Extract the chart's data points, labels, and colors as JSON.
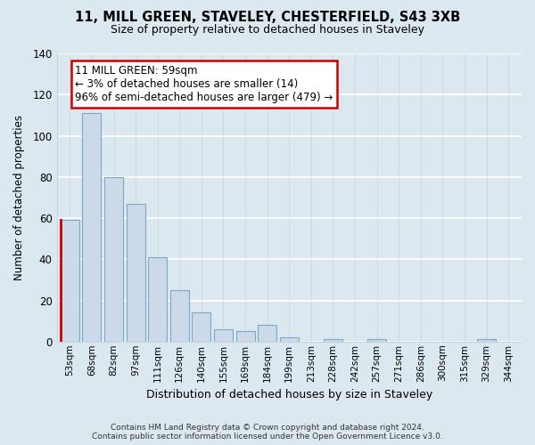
{
  "title": "11, MILL GREEN, STAVELEY, CHESTERFIELD, S43 3XB",
  "subtitle": "Size of property relative to detached houses in Staveley",
  "xlabel": "Distribution of detached houses by size in Staveley",
  "ylabel": "Number of detached properties",
  "categories": [
    "53sqm",
    "68sqm",
    "82sqm",
    "97sqm",
    "111sqm",
    "126sqm",
    "140sqm",
    "155sqm",
    "169sqm",
    "184sqm",
    "199sqm",
    "213sqm",
    "228sqm",
    "242sqm",
    "257sqm",
    "271sqm",
    "286sqm",
    "300sqm",
    "315sqm",
    "329sqm",
    "344sqm"
  ],
  "values": [
    59,
    111,
    80,
    67,
    41,
    25,
    14,
    6,
    5,
    8,
    2,
    0,
    1,
    0,
    1,
    0,
    0,
    0,
    0,
    1,
    0
  ],
  "bar_color": "#ccd9e8",
  "bar_edge_color": "#7ea8c8",
  "highlight_bar_index": 0,
  "annotation_text": "11 MILL GREEN: 59sqm\n← 3% of detached houses are smaller (14)\n96% of semi-detached houses are larger (479) →",
  "annotation_box_color": "white",
  "annotation_box_edge_color": "#cc0000",
  "ylim": [
    0,
    140
  ],
  "yticks": [
    0,
    20,
    40,
    60,
    80,
    100,
    120,
    140
  ],
  "grid_color": "#c8d4e0",
  "footer_line1": "Contains HM Land Registry data © Crown copyright and database right 2024.",
  "footer_line2": "Contains public sector information licensed under the Open Government Licence v3.0.",
  "bg_color": "#dce8f0"
}
